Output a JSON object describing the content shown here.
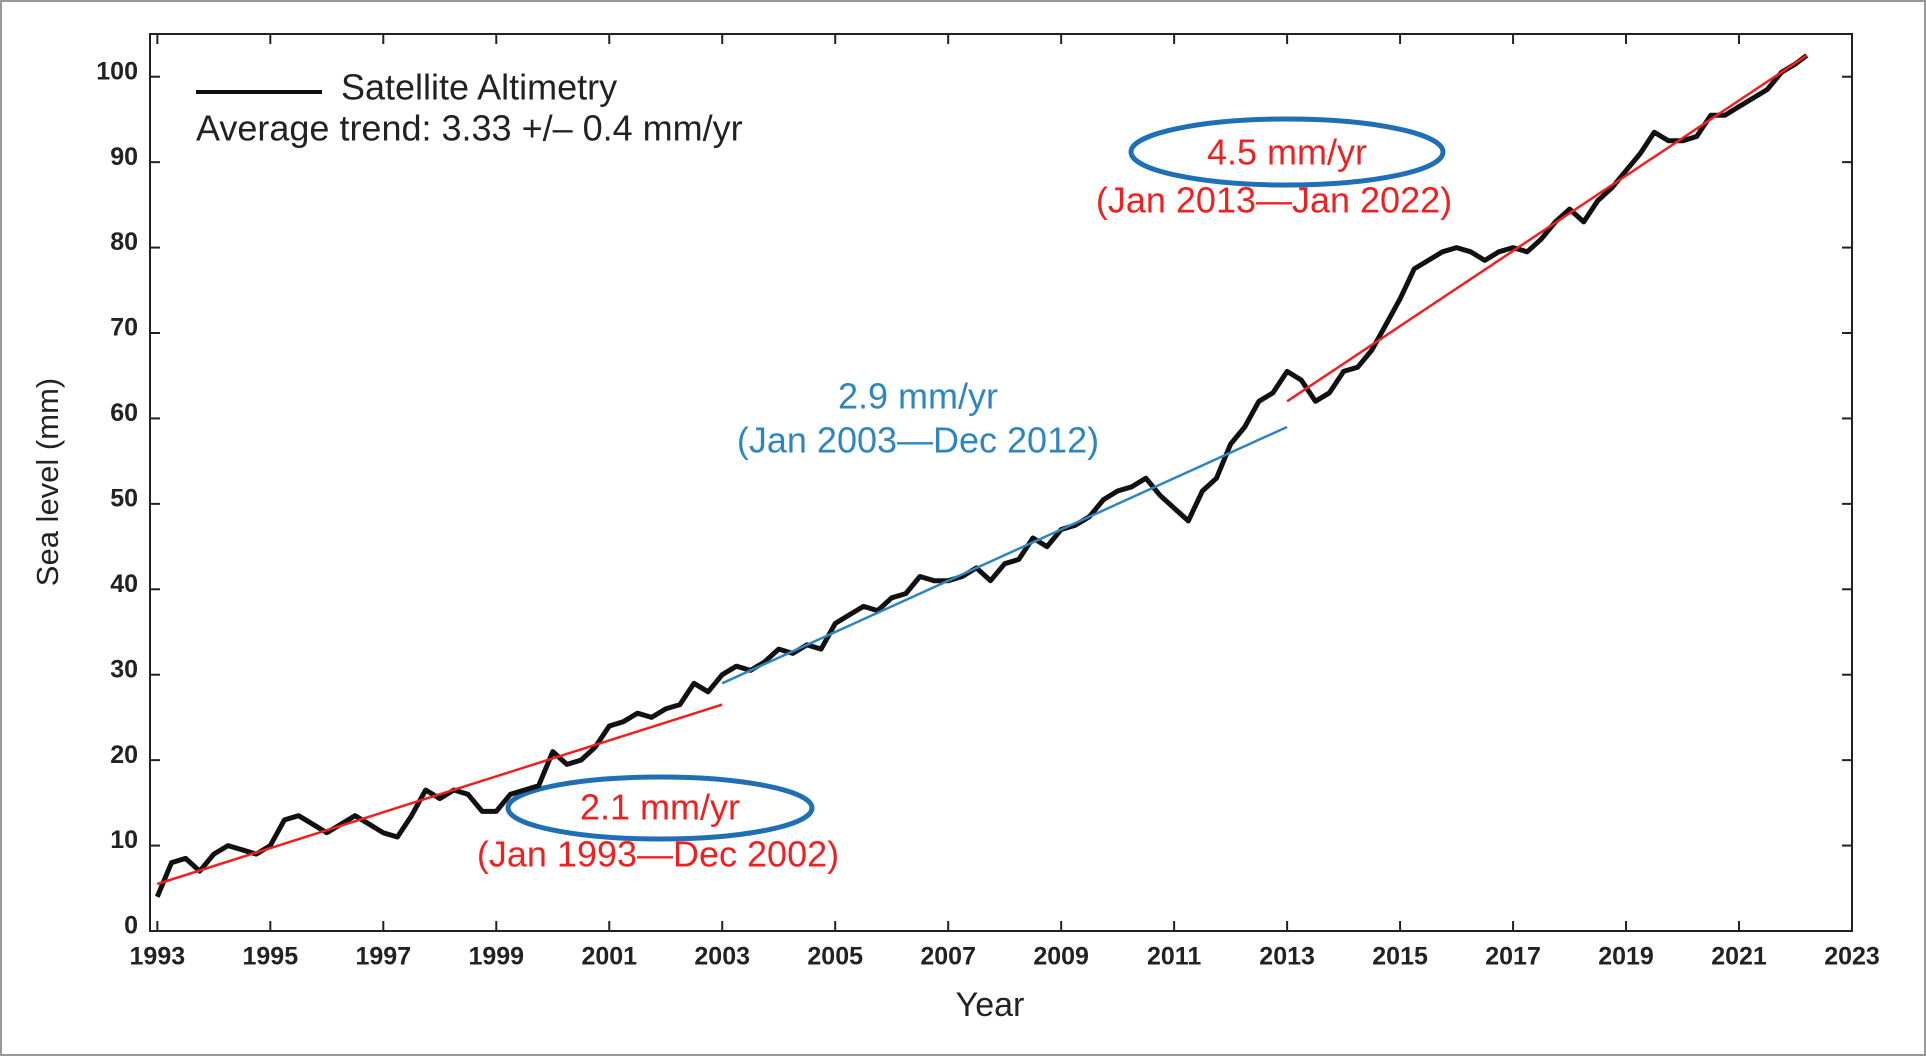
{
  "chart_data": {
    "type": "line",
    "xlabel": "Year",
    "ylabel": "Sea level (mm)",
    "xlim": [
      1992.87,
      2023
    ],
    "ylim": [
      0,
      105
    ],
    "xticks": [
      1993,
      1995,
      1997,
      1999,
      2001,
      2003,
      2005,
      2007,
      2009,
      2011,
      2013,
      2015,
      2017,
      2019,
      2021,
      2023
    ],
    "yticks": [
      0,
      10,
      20,
      30,
      40,
      50,
      60,
      70,
      80,
      90,
      100
    ],
    "legend": "upper left",
    "series": [
      {
        "name": "Satellite Altimetry",
        "color": "#111111",
        "x": [
          1993.0,
          1993.25,
          1993.5,
          1993.75,
          1994.0,
          1994.25,
          1994.5,
          1994.75,
          1995.0,
          1995.25,
          1995.5,
          1995.75,
          1996.0,
          1996.25,
          1996.5,
          1996.75,
          1997.0,
          1997.25,
          1997.5,
          1997.75,
          1998.0,
          1998.25,
          1998.5,
          1998.75,
          1999.0,
          1999.25,
          1999.5,
          1999.75,
          2000.0,
          2000.25,
          2000.5,
          2000.75,
          2001.0,
          2001.25,
          2001.5,
          2001.75,
          2002.0,
          2002.25,
          2002.5,
          2002.75,
          2003.0,
          2003.25,
          2003.5,
          2003.75,
          2004.0,
          2004.25,
          2004.5,
          2004.75,
          2005.0,
          2005.25,
          2005.5,
          2005.75,
          2006.0,
          2006.25,
          2006.5,
          2006.75,
          2007.0,
          2007.25,
          2007.5,
          2007.75,
          2008.0,
          2008.25,
          2008.5,
          2008.75,
          2009.0,
          2009.25,
          2009.5,
          2009.75,
          2010.0,
          2010.25,
          2010.5,
          2010.75,
          2011.0,
          2011.25,
          2011.5,
          2011.75,
          2012.0,
          2012.25,
          2012.5,
          2012.75,
          2013.0,
          2013.25,
          2013.5,
          2013.75,
          2014.0,
          2014.25,
          2014.5,
          2014.75,
          2015.0,
          2015.25,
          2015.5,
          2015.75,
          2016.0,
          2016.25,
          2016.5,
          2016.75,
          2017.0,
          2017.25,
          2017.5,
          2017.75,
          2018.0,
          2018.25,
          2018.5,
          2018.75,
          2019.0,
          2019.25,
          2019.5,
          2019.75,
          2020.0,
          2020.25,
          2020.5,
          2020.75,
          2021.0,
          2021.25,
          2021.5,
          2021.75,
          2022.0,
          2022.2
        ],
        "values": [
          4,
          8,
          8.5,
          7,
          9,
          10,
          9.5,
          9,
          10,
          13,
          13.5,
          12.5,
          11.5,
          12.5,
          13.5,
          12.5,
          11.5,
          11,
          13.5,
          16.5,
          15.5,
          16.5,
          16,
          14,
          14,
          16,
          16.5,
          17,
          21,
          19.5,
          20,
          21.5,
          24,
          24.5,
          25.5,
          25,
          26,
          26.5,
          29,
          28,
          30,
          31,
          30.5,
          31.5,
          33,
          32.5,
          33.5,
          33,
          36,
          37,
          38,
          37.5,
          39,
          39.5,
          41.5,
          41,
          41,
          41.5,
          42.5,
          41,
          43,
          43.5,
          46,
          45,
          47,
          47.5,
          48.5,
          50.5,
          51.5,
          52,
          53,
          51,
          49.5,
          48,
          51.5,
          53,
          57,
          59,
          62,
          63,
          65.5,
          64.5,
          62,
          63,
          65.5,
          66,
          68,
          71,
          74,
          77.5,
          78.5,
          79.5,
          80,
          79.5,
          78.5,
          79.5,
          80,
          79.5,
          81,
          83,
          84.5,
          83,
          85.5,
          87,
          89,
          91,
          93.5,
          92.5,
          92.5,
          93,
          95.5,
          95.5,
          96.5,
          97.5,
          98.5,
          100.5,
          101.5,
          102.5
        ]
      },
      {
        "color": "#f02020",
        "x": [
          1993.0,
          2003.0
        ],
        "values": [
          5.5,
          26.5
        ]
      },
      {
        "color": "#2e86c1",
        "x": [
          2003.0,
          2013.0
        ],
        "values": [
          29,
          59
        ]
      },
      {
        "color": "#f02020",
        "x": [
          2013.0,
          2022.2
        ],
        "values": [
          62,
          102.5
        ]
      }
    ],
    "annotations": [
      {
        "text": "Average trend: 3.33 +/– 0.4 mm/yr",
        "color": "#222222"
      },
      {
        "text": "4.5 mm/yr",
        "color": "#f02020"
      },
      {
        "text": "(Jan 2013—Jan 2022)",
        "color": "#f02020"
      },
      {
        "text": "2.9 mm/yr",
        "color": "#2e86c1"
      },
      {
        "text": "(Jan 2003—Dec 2012)",
        "color": "#2e86c1"
      },
      {
        "text": "2.1 mm/yr",
        "color": "#f02020"
      },
      {
        "text": "(Jan 1993—Dec 2002)",
        "color": "#f02020"
      }
    ]
  }
}
